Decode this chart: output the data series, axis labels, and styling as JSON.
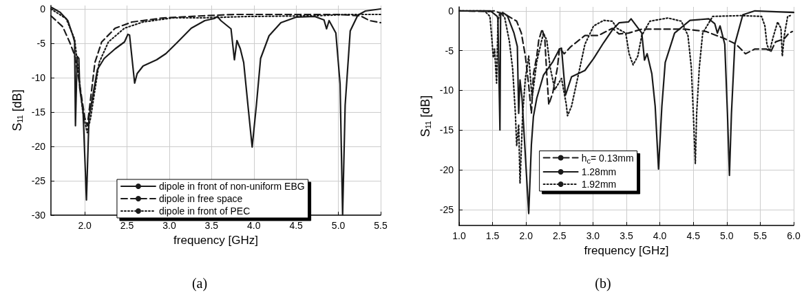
{
  "chart_data": [
    {
      "type": "line",
      "title": "(a)",
      "xlabel": "frequency [GHz]",
      "ylabel": "S$_{11}$ [dB]",
      "xlim": [
        1.6,
        5.5
      ],
      "ylim": [
        -30,
        0.5
      ],
      "xticks": [
        {
          "value": 2,
          "label": "2.0"
        },
        2.5,
        {
          "value": 3,
          "label": "3.0"
        },
        3.5,
        {
          "value": 4,
          "label": "4.0"
        },
        4.5,
        {
          "value": 5,
          "label": "5.0"
        },
        5.5
      ],
      "yticks": [
        0,
        -5,
        -10,
        -15,
        -20,
        -25,
        -30
      ],
      "grid": true,
      "legend": "bottom right",
      "marker": "none",
      "series": [
        {
          "name": "dipole in front of non-uniform EBG",
          "color": "#1a1a1a",
          "line_style": "solid",
          "x": [
            1.61,
            1.71,
            1.8,
            1.86,
            1.88,
            1.89,
            1.91,
            1.93,
            1.94,
            1.98,
            2.02,
            2.05,
            2.09,
            2.15,
            2.23,
            2.36,
            2.47,
            2.51,
            2.53,
            2.59,
            2.62,
            2.69,
            2.85,
            2.96,
            3.1,
            3.26,
            3.42,
            3.53,
            3.57,
            3.61,
            3.73,
            3.77,
            3.8,
            3.84,
            3.88,
            3.93,
            3.98,
            4.03,
            4.08,
            4.18,
            4.32,
            4.5,
            4.72,
            4.83,
            4.86,
            4.89,
            4.97,
            5.02,
            5.05,
            5.08,
            5.14,
            5.23,
            5.32,
            5.5
          ],
          "values": [
            0.2,
            -0.5,
            -1.7,
            -3.9,
            -4.8,
            -17,
            -6.9,
            -7.2,
            -11.5,
            -14.9,
            -27.8,
            -15.8,
            -13,
            -8.8,
            -7.2,
            -5.8,
            -4.8,
            -3.7,
            -3.8,
            -10.8,
            -9.4,
            -8.3,
            -7.4,
            -6.5,
            -4.8,
            -2.8,
            -1.7,
            -1.4,
            -1.1,
            -1.7,
            -2.9,
            -7.4,
            -4.6,
            -5.8,
            -7.8,
            -14,
            -20.1,
            -14,
            -7.2,
            -3.9,
            -2,
            -1.2,
            -1.1,
            -1.6,
            -2.9,
            -1.7,
            -3.5,
            -10.9,
            -30,
            -14,
            -3.2,
            -0.9,
            -0.3,
            0
          ]
        },
        {
          "name": "dipole in free space",
          "color": "#1a1a1a",
          "line_style": "dashed",
          "x": [
            1.6,
            1.74,
            1.82,
            1.88,
            1.94,
            2,
            2.03,
            2.06,
            2.12,
            2.2,
            2.36,
            2.56,
            2.93,
            3.4,
            3.77,
            4.45,
            4.99,
            5.26,
            5.37,
            5.5
          ],
          "values": [
            -1,
            -2.6,
            -4.8,
            -6.7,
            -11,
            -15.8,
            -17,
            -14,
            -7.8,
            -4.8,
            -2.8,
            -1.9,
            -1.3,
            -1,
            -0.8,
            -0.8,
            -0.8,
            -1,
            -1.7,
            -2
          ]
        },
        {
          "name": "dipole in front of PEC",
          "color": "#1a1a1a",
          "line_style": "dotted",
          "x": [
            1.6,
            1.78,
            1.88,
            1.93,
            1.98,
            2.03,
            2.07,
            2.12,
            2.17,
            2.28,
            2.47,
            2.69,
            3.04,
            3.4,
            3.92,
            4.72,
            5.12,
            5.5
          ],
          "values": [
            0,
            -1.4,
            -4.4,
            -9.7,
            -15.3,
            -18,
            -15.8,
            -11.8,
            -7.8,
            -4.8,
            -2.8,
            -1.9,
            -1.3,
            -1.3,
            -1.1,
            -1,
            -0.8,
            -0.8
          ]
        }
      ]
    },
    {
      "type": "line",
      "title": "(b)",
      "xlabel": "frequency [GHz]",
      "ylabel": "S$_{11}$ [dB]",
      "xlim": [
        1,
        6
      ],
      "ylim": [
        -27,
        0.5
      ],
      "xticks": [
        {
          "value": 1,
          "label": "1.0"
        },
        1.5,
        {
          "value": 2,
          "label": "2.0"
        },
        2.5,
        {
          "value": 3,
          "label": "3.0"
        },
        3.5,
        {
          "value": 4,
          "label": "4.0"
        },
        4.5,
        {
          "value": 5,
          "label": "5.0"
        },
        5.5,
        {
          "value": 6,
          "label": "6.0"
        }
      ],
      "yticks": [
        0,
        -5,
        -10,
        -15,
        -20,
        -25
      ],
      "grid": true,
      "legend": "bottom left",
      "marker": "none",
      "series": [
        {
          "name": "h$_{c}$= 0.13mm",
          "color": "#1a1a1a",
          "line_style": "dashed",
          "x": [
            1,
            1.45,
            1.52,
            1.72,
            1.86,
            1.93,
            1.99,
            2.04,
            2.08,
            2.11,
            2.16,
            2.19,
            2.24,
            2.28,
            2.31,
            2.34,
            2.4,
            2.47,
            2.5,
            2.57,
            2.67,
            2.88,
            3.08,
            3.29,
            3.39,
            3.53,
            3.73,
            4.04,
            4.38,
            4.69,
            4.97,
            5.14,
            5.28,
            5.42,
            5.59,
            5.66,
            5.73,
            5.86,
            5.93,
            5.98
          ],
          "values": [
            0,
            -0.1,
            0,
            -0.6,
            -1.3,
            -2.8,
            -5.7,
            -9.4,
            -12.9,
            -8,
            -5.7,
            -3.7,
            -2.3,
            -3.5,
            -8,
            -11.8,
            -10.3,
            -7.1,
            -4.7,
            -5.4,
            -4.5,
            -3.1,
            -3.1,
            -2.2,
            -2.9,
            -2.8,
            -2.3,
            -2.3,
            -2.3,
            -2.6,
            -3.5,
            -4.2,
            -5.4,
            -4.8,
            -4.8,
            -5.1,
            -3.9,
            -3.5,
            -2.8,
            -2.6
          ]
        },
        {
          "name": "1.28mm",
          "color": "#1a1a1a",
          "line_style": "solid",
          "x": [
            1,
            1.47,
            1.57,
            1.58,
            1.61,
            1.62,
            1.65,
            1.72,
            1.82,
            1.87,
            1.89,
            1.91,
            1.94,
            2.04,
            2.08,
            2.11,
            2.16,
            2.26,
            2.4,
            2.5,
            2.53,
            2.59,
            2.68,
            2.88,
            3.01,
            3.16,
            3.29,
            3.39,
            3.53,
            3.57,
            3.73,
            3.77,
            3.81,
            3.88,
            3.93,
            3.98,
            4.03,
            4.08,
            4.22,
            4.45,
            4.73,
            4.82,
            4.86,
            4.9,
            4.97,
            5.01,
            5.04,
            5.07,
            5.12,
            5.24,
            5.42,
            6
          ],
          "values": [
            0,
            0,
            -0.7,
            -1.1,
            -15,
            -0.5,
            -0.2,
            -0.6,
            -2.8,
            -4.5,
            -12.9,
            -8.7,
            -11,
            -25.5,
            -16.8,
            -13.3,
            -11,
            -8.1,
            -6.4,
            -4.8,
            -4.7,
            -10.6,
            -8.3,
            -7.5,
            -6,
            -4,
            -2.4,
            -1.5,
            -1.4,
            -1,
            -2.8,
            -6.2,
            -5.4,
            -7.9,
            -12,
            -19.9,
            -12,
            -6.5,
            -2.8,
            -1.2,
            -1,
            -1.6,
            -2.8,
            -1.9,
            -4.2,
            -12.9,
            -20.7,
            -12.9,
            -4.2,
            -0.5,
            0,
            -0.2
          ]
        },
        {
          "name": "1.92mm",
          "color": "#1a1a1a",
          "line_style": "dotted",
          "x": [
            1,
            1.38,
            1.46,
            1.49,
            1.51,
            1.53,
            1.56,
            1.58,
            1.61,
            1.68,
            1.75,
            1.8,
            1.84,
            1.86,
            1.89,
            1.91,
            1.95,
            1.99,
            2.04,
            2.09,
            2.16,
            2.22,
            2.26,
            2.31,
            2.36,
            2.43,
            2.53,
            2.6,
            2.62,
            2.68,
            2.77,
            2.88,
            3.01,
            3.16,
            3.29,
            3.36,
            3.49,
            3.54,
            3.6,
            3.67,
            3.73,
            3.85,
            4.12,
            4.32,
            4.42,
            4.47,
            4.5,
            4.53,
            4.55,
            4.59,
            4.64,
            4.79,
            5.21,
            5.52,
            5.57,
            5.6,
            5.64,
            5.69,
            5.76,
            5.81,
            5.83,
            5.86,
            5.91,
            5.95
          ],
          "values": [
            0,
            0,
            -0.7,
            -3.6,
            -5.9,
            -4.8,
            -9.1,
            -1.3,
            -0.2,
            -0.8,
            -3.8,
            -7.3,
            -12.8,
            -17,
            -14.3,
            -21.7,
            -12.9,
            -8.5,
            -5.7,
            -11,
            -6.4,
            -4.2,
            -2.8,
            -3.7,
            -7.1,
            -9.9,
            -8.5,
            -11.7,
            -13.2,
            -12,
            -8.5,
            -4.2,
            -1.9,
            -1.2,
            -1.3,
            -2.2,
            -2.8,
            -5.4,
            -6.8,
            -5.7,
            -3.1,
            -1.3,
            -0.9,
            -1.3,
            -3.1,
            -7.1,
            -12.9,
            -19.2,
            -12.9,
            -7.1,
            -2.8,
            -0.7,
            -0.6,
            -0.7,
            -1.9,
            -4.2,
            -5.1,
            -3.4,
            -1.4,
            -2.2,
            -5.7,
            -3.1,
            -0.7,
            -0.6
          ]
        }
      ]
    }
  ]
}
